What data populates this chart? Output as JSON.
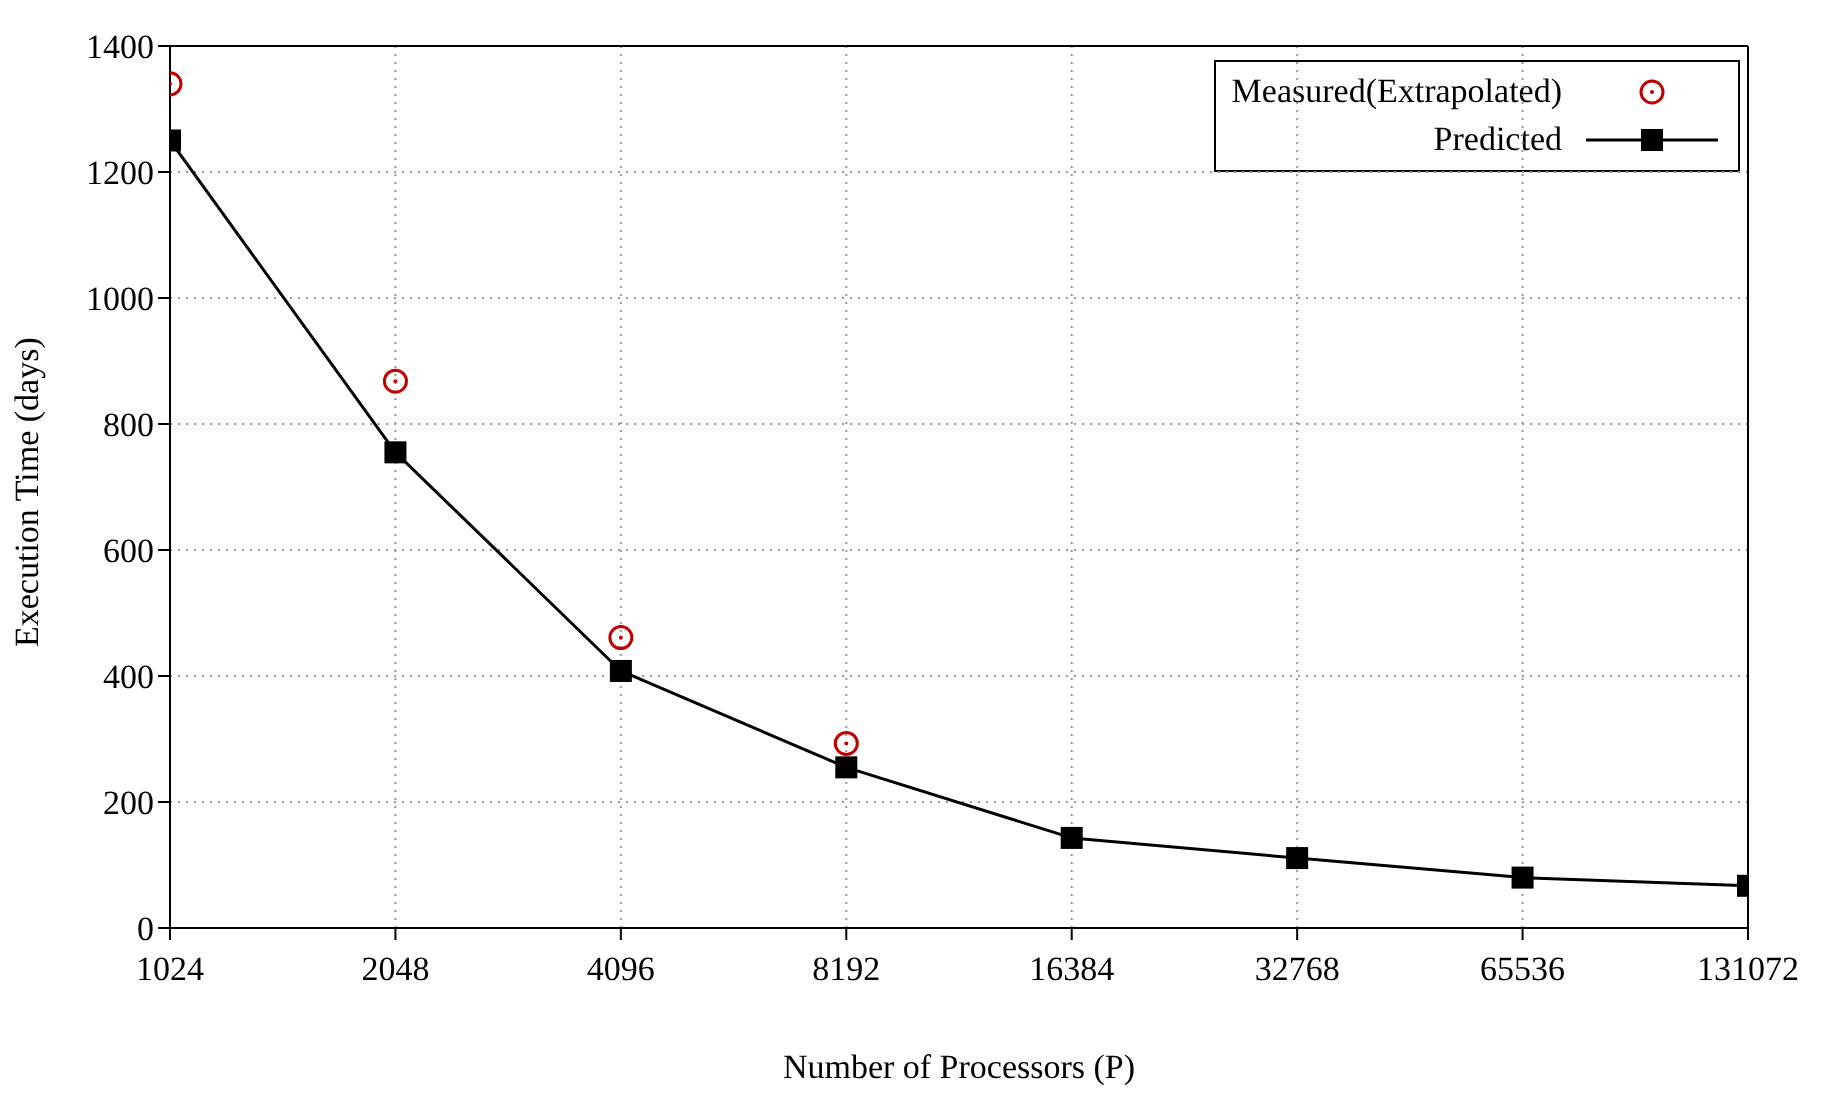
{
  "chart_data": {
    "type": "line",
    "xlabel": "Number of Processors (P)",
    "ylabel": "Execution Time (days)",
    "categories": [
      "1024",
      "2048",
      "4096",
      "8192",
      "16384",
      "32768",
      "65536",
      "131072"
    ],
    "series": [
      {
        "name": "Measured(Extrapolated)",
        "type": "scatter",
        "marker": "circle",
        "color": "#c00000",
        "values": [
          1340,
          868,
          461,
          293,
          null,
          null,
          null,
          null
        ]
      },
      {
        "name": "Predicted",
        "type": "line",
        "marker": "square",
        "color": "#000000",
        "values": [
          1250,
          755,
          408,
          255,
          143,
          111,
          80,
          67
        ]
      }
    ],
    "ylim": [
      0,
      1400
    ],
    "yticks": [
      0,
      200,
      400,
      600,
      800,
      1000,
      1200,
      1400
    ],
    "grid": true,
    "legend": "top right"
  }
}
